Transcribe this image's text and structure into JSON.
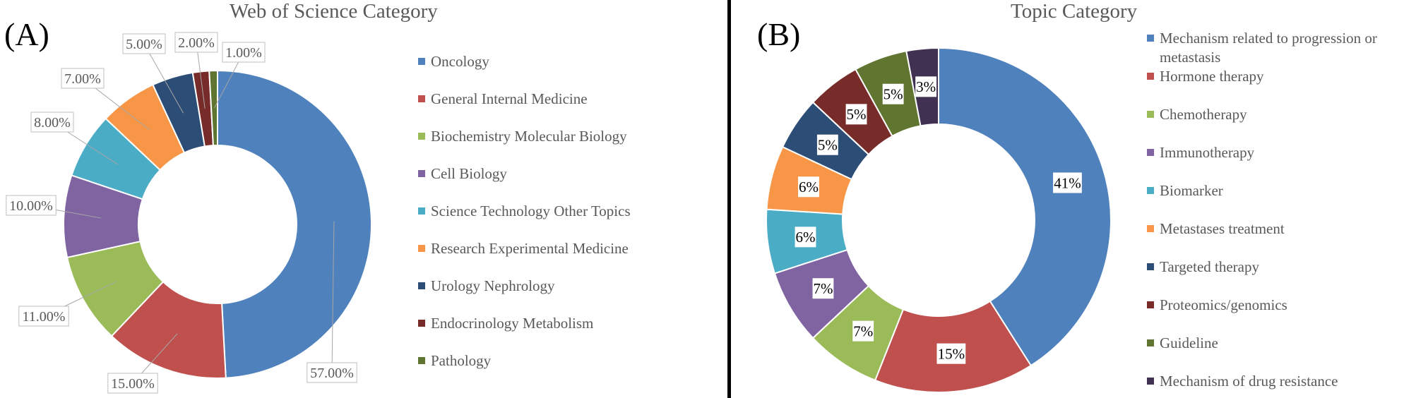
{
  "panels": {
    "a": {
      "letter": "(A)"
    },
    "b": {
      "letter": "(B)"
    }
  },
  "chart_data": [
    {
      "type": "pie",
      "donut": true,
      "title": "Web of Science Category",
      "legend_position": "right",
      "categories": [
        "Oncology",
        "General Internal Medicine",
        "Biochemistry Molecular Biology",
        "Cell Biology",
        "Science Technology Other Topics",
        "Research Experimental Medicine",
        "Urology Nephrology",
        "Endocrinology Metabolism",
        "Pathology"
      ],
      "values": [
        57,
        15,
        11,
        10,
        8,
        7,
        5,
        2,
        1
      ],
      "labels": [
        "57.00%",
        "15.00%",
        "11.00%",
        "10.00%",
        "8.00%",
        "7.00%",
        "5.00%",
        "2.00%",
        "1.00%"
      ],
      "colors": [
        "#4f81bd",
        "#c0504d",
        "#9bbb59",
        "#8064a2",
        "#4bacc6",
        "#f79646",
        "#2c4d75",
        "#772c2a",
        "#5f7530"
      ],
      "label_style": "outside-callout"
    },
    {
      "type": "pie",
      "donut": true,
      "title": "Topic Category",
      "legend_position": "right",
      "categories": [
        "Mechanism related to progression or metastasis",
        "Hormone therapy",
        "Chemotherapy",
        "Immunotherapy",
        "Biomarker",
        "Metastases treatment",
        "Targeted therapy",
        "Proteomics/genomics",
        "Guideline",
        "Mechanism of drug resistance"
      ],
      "values": [
        41,
        15,
        7,
        7,
        6,
        6,
        5,
        5,
        5,
        3
      ],
      "labels": [
        "41%",
        "15%",
        "7%",
        "7%",
        "6%",
        "6%",
        "5%",
        "5%",
        "5%",
        "3%"
      ],
      "colors": [
        "#4f81bd",
        "#c0504d",
        "#9bbb59",
        "#8064a2",
        "#4bacc6",
        "#f79646",
        "#2c4d75",
        "#772c2a",
        "#5f7530",
        "#403152"
      ],
      "label_style": "inside"
    }
  ]
}
